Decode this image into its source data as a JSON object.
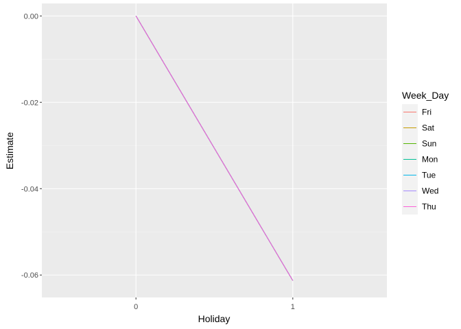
{
  "chart_data": {
    "type": "line",
    "title": "",
    "xlabel": "Holiday",
    "ylabel": "Estimate",
    "x_ticks": [
      "0",
      "1"
    ],
    "y_ticks": [
      "0.00",
      "-0.02",
      "-0.04",
      "-0.06"
    ],
    "y_tick_values": [
      0.0,
      -0.02,
      -0.04,
      -0.06
    ],
    "x_range": [
      -0.6,
      1.6
    ],
    "ylim": [
      -0.0652,
      0.0029
    ],
    "grid": true,
    "panel_background": "#ebebeb",
    "legend": {
      "title": "Week_Day",
      "placement": "right",
      "entries": [
        {
          "label": "Fri",
          "color": "#F8766D"
        },
        {
          "label": "Sat",
          "color": "#C49A00"
        },
        {
          "label": "Sun",
          "color": "#53B400"
        },
        {
          "label": "Mon",
          "color": "#00C094"
        },
        {
          "label": "Tue",
          "color": "#00B6EB"
        },
        {
          "label": "Wed",
          "color": "#A58AFF"
        },
        {
          "label": "Thu",
          "color": "#FB61D7"
        }
      ]
    },
    "x": [
      0,
      1
    ],
    "series": [
      {
        "name": "Fri",
        "color": "#F8766D",
        "values": [
          0.0,
          -0.0613
        ]
      },
      {
        "name": "Sat",
        "color": "#C49A00",
        "values": [
          0.0,
          -0.0613
        ]
      },
      {
        "name": "Sun",
        "color": "#53B400",
        "values": [
          0.0,
          -0.0613
        ]
      },
      {
        "name": "Mon",
        "color": "#00C094",
        "values": [
          0.0,
          -0.0613
        ]
      },
      {
        "name": "Tue",
        "color": "#00B6EB",
        "values": [
          0.0,
          -0.0613
        ]
      },
      {
        "name": "Wed",
        "color": "#A58AFF",
        "values": [
          0.0,
          -0.0613
        ]
      },
      {
        "name": "Thu",
        "color": "#FB61D7",
        "values": [
          0.0,
          -0.0613
        ]
      }
    ]
  }
}
